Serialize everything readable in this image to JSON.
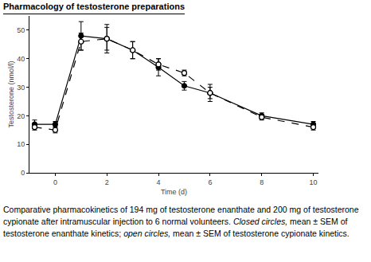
{
  "chart_data": {
    "type": "line",
    "title": "Pharmacology of testosterone preparations",
    "x_label": "Time (d)",
    "y_label": "Testosterone (nmol/l)",
    "caption": [
      "Comparative pharmacokinetics of 194 mg of testosterone enanthate and 200 mg of testosterone cypionate after intramuscular injection to 6 normal volunteers. ",
      "Closed circles,",
      " mean ± SEM of testosterone enanthate kinetics; ",
      "open circles,",
      " mean ± SEM of testosterone cypionate kinetics."
    ],
    "x": [
      -0.8,
      0,
      1,
      2,
      3,
      4,
      5,
      6,
      8,
      10
    ],
    "series": [
      {
        "color": "#000000",
        "marker": "filled",
        "line_style": "solid",
        "values": [
          17,
          17,
          48,
          47,
          43,
          37,
          30.5,
          28,
          20,
          17
        ],
        "errors": [
          1.5,
          1,
          5,
          5,
          3,
          3,
          1.5,
          2,
          1,
          1
        ]
      },
      {
        "color": "#000000",
        "marker": "open",
        "line_style": "dashed",
        "values": [
          16,
          15,
          46,
          47,
          43,
          38,
          35,
          28,
          19.5,
          16
        ],
        "errors": [
          1,
          1,
          3,
          4,
          3,
          2,
          1,
          3,
          1,
          1
        ]
      }
    ],
    "xlim": [
      -1,
      10.2
    ],
    "xticks": [
      0,
      2,
      4,
      6,
      8,
      10
    ],
    "ylim": [
      0,
      55
    ],
    "yticks": [
      0,
      10,
      20,
      30,
      40,
      50
    ],
    "grid": false
  }
}
